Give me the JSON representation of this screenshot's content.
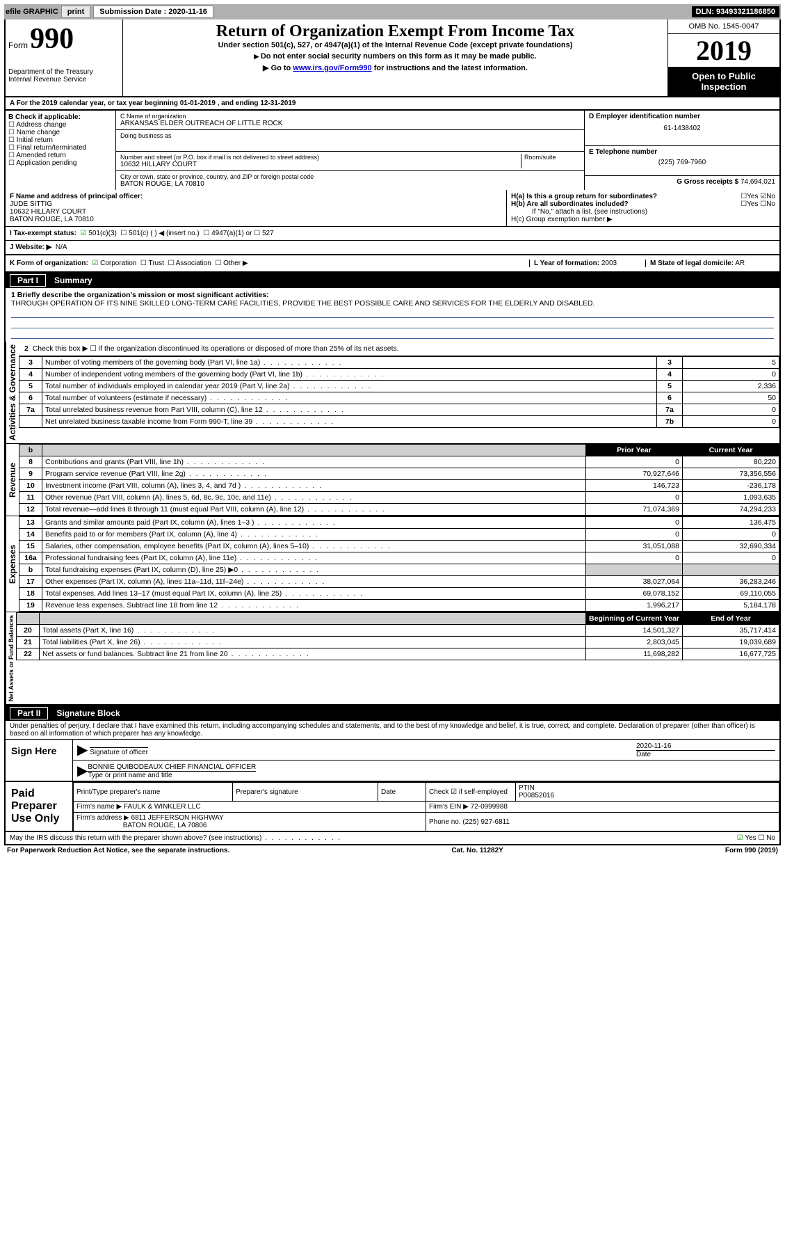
{
  "topbar": {
    "efile": "efile GRAPHIC",
    "print": "print",
    "sub_label": "Submission Date : 2020-11-16",
    "dln": "DLN: 93493321186850"
  },
  "header": {
    "form_prefix": "Form",
    "form_num": "990",
    "dept": "Department of the Treasury",
    "irs": "Internal Revenue Service",
    "title": "Return of Organization Exempt From Income Tax",
    "subtitle": "Under section 501(c), 527, or 4947(a)(1) of the Internal Revenue Code (except private foundations)",
    "note1": "Do not enter social security numbers on this form as it may be made public.",
    "note2_pre": "Go to ",
    "note2_link": "www.irs.gov/Form990",
    "note2_post": " for instructions and the latest information.",
    "omb": "OMB No. 1545-0047",
    "year": "2019",
    "open": "Open to Public Inspection"
  },
  "section_a": "A   For the 2019 calendar year, or tax year beginning 01-01-2019    , and ending 12-31-2019",
  "col_b": {
    "label": "B Check if applicable:",
    "items": [
      "Address change",
      "Name change",
      "Initial return",
      "Final return/terminated",
      "Amended return",
      "Application pending"
    ]
  },
  "col_c": {
    "name_label": "C Name of organization",
    "name": "ARKANSAS ELDER OUTREACH OF LITTLE ROCK",
    "dba": "Doing business as",
    "addr_label": "Number and street (or P.O. box if mail is not delivered to street address)",
    "room": "Room/suite",
    "addr": "10632 HILLARY COURT",
    "city_label": "City or town, state or province, country, and ZIP or foreign postal code",
    "city": "BATON ROUGE, LA  70810"
  },
  "col_d": {
    "label": "D Employer identification number",
    "val": "61-1438402"
  },
  "col_e": {
    "label": "E Telephone number",
    "val": "(225) 769-7960"
  },
  "col_g": {
    "label": "G Gross receipts $",
    "val": "74,694,021"
  },
  "col_f": {
    "label": "F  Name and address of principal officer:",
    "name": "JUDE SITTIG",
    "addr1": "10632 HILLARY COURT",
    "addr2": "BATON ROUGE, LA  70810"
  },
  "col_h": {
    "a": "H(a)  Is this a group return for subordinates?",
    "b": "H(b)  Are all subordinates included?",
    "b_note": "If \"No,\" attach a list. (see instructions)",
    "c": "H(c)  Group exemption number ▶"
  },
  "row_i": {
    "label": "I   Tax-exempt status:",
    "opts": [
      "501(c)(3)",
      "501(c) (  ) ◀ (insert no.)",
      "4947(a)(1) or",
      "527"
    ]
  },
  "row_j": {
    "label": "J   Website: ▶",
    "val": "N/A"
  },
  "row_k": {
    "label": "K Form of organization:",
    "opts": [
      "Corporation",
      "Trust",
      "Association",
      "Other ▶"
    ]
  },
  "row_l": {
    "label": "L Year of formation:",
    "val": "2003"
  },
  "row_m": {
    "label": "M State of legal domicile:",
    "val": "AR"
  },
  "part1": {
    "header": "Summary",
    "line1_label": "1   Briefly describe the organization's mission or most significant activities:",
    "line1_text": "THROUGH OPERATION OF ITS NINE SKILLED LONG-TERM CARE FACILITIES, PROVIDE THE BEST POSSIBLE CARE AND SERVICES FOR THE ELDERLY AND DISABLED.",
    "line2": "Check this box ▶ ☐  if the organization discontinued its operations or disposed of more than 25% of its net assets.",
    "lines_a": [
      {
        "n": "3",
        "d": "Number of voting members of the governing body (Part VI, line 1a)",
        "b": "3",
        "v": "5"
      },
      {
        "n": "4",
        "d": "Number of independent voting members of the governing body (Part VI, line 1b)",
        "b": "4",
        "v": "0"
      },
      {
        "n": "5",
        "d": "Total number of individuals employed in calendar year 2019 (Part V, line 2a)",
        "b": "5",
        "v": "2,336"
      },
      {
        "n": "6",
        "d": "Total number of volunteers (estimate if necessary)",
        "b": "6",
        "v": "50"
      },
      {
        "n": "7a",
        "d": "Total unrelated business revenue from Part VIII, column (C), line 12",
        "b": "7a",
        "v": "0"
      },
      {
        "n": "",
        "d": "Net unrelated business taxable income from Form 990-T, line 39",
        "b": "7b",
        "v": "0"
      }
    ],
    "col_headers": {
      "prior": "Prior Year",
      "current": "Current Year"
    },
    "lines_rev": [
      {
        "n": "8",
        "d": "Contributions and grants (Part VIII, line 1h)",
        "p": "0",
        "c": "80,220"
      },
      {
        "n": "9",
        "d": "Program service revenue (Part VIII, line 2g)",
        "p": "70,927,646",
        "c": "73,356,556"
      },
      {
        "n": "10",
        "d": "Investment income (Part VIII, column (A), lines 3, 4, and 7d )",
        "p": "146,723",
        "c": "-236,178"
      },
      {
        "n": "11",
        "d": "Other revenue (Part VIII, column (A), lines 5, 6d, 8c, 9c, 10c, and 11e)",
        "p": "0",
        "c": "1,093,635"
      },
      {
        "n": "12",
        "d": "Total revenue—add lines 8 through 11 (must equal Part VIII, column (A), line 12)",
        "p": "71,074,369",
        "c": "74,294,233"
      }
    ],
    "lines_exp": [
      {
        "n": "13",
        "d": "Grants and similar amounts paid (Part IX, column (A), lines 1–3 )",
        "p": "0",
        "c": "136,475"
      },
      {
        "n": "14",
        "d": "Benefits paid to or for members (Part IX, column (A), line 4)",
        "p": "0",
        "c": "0"
      },
      {
        "n": "15",
        "d": "Salaries, other compensation, employee benefits (Part IX, column (A), lines 5–10)",
        "p": "31,051,088",
        "c": "32,690,334"
      },
      {
        "n": "16a",
        "d": "Professional fundraising fees (Part IX, column (A), line 11e)",
        "p": "0",
        "c": "0"
      },
      {
        "n": "b",
        "d": "Total fundraising expenses (Part IX, column (D), line 25) ▶0",
        "p": "",
        "c": "",
        "shade": true
      },
      {
        "n": "17",
        "d": "Other expenses (Part IX, column (A), lines 11a–11d, 11f–24e)",
        "p": "38,027,064",
        "c": "36,283,246"
      },
      {
        "n": "18",
        "d": "Total expenses. Add lines 13–17 (must equal Part IX, column (A), line 25)",
        "p": "69,078,152",
        "c": "69,110,055"
      },
      {
        "n": "19",
        "d": "Revenue less expenses. Subtract line 18 from line 12",
        "p": "1,996,217",
        "c": "5,184,178"
      }
    ],
    "col_headers2": {
      "beg": "Beginning of Current Year",
      "end": "End of Year"
    },
    "lines_net": [
      {
        "n": "20",
        "d": "Total assets (Part X, line 16)",
        "p": "14,501,327",
        "c": "35,717,414"
      },
      {
        "n": "21",
        "d": "Total liabilities (Part X, line 26)",
        "p": "2,803,045",
        "c": "19,039,689"
      },
      {
        "n": "22",
        "d": "Net assets or fund balances. Subtract line 21 from line 20",
        "p": "11,698,282",
        "c": "16,677,725"
      }
    ],
    "vert_a": "Activities & Governance",
    "vert_r": "Revenue",
    "vert_e": "Expenses",
    "vert_n": "Net Assets or Fund Balances"
  },
  "part2": {
    "header": "Signature Block",
    "penalty": "Under penalties of perjury, I declare that I have examined this return, including accompanying schedules and statements, and to the best of my knowledge and belief, it is true, correct, and complete. Declaration of preparer (other than officer) is based on all information of which preparer has any knowledge.",
    "sign_here": "Sign Here",
    "sig_officer": "Signature of officer",
    "date": "Date",
    "date_val": "2020-11-16",
    "name": "BONNIE QUIBODEAUX  CHIEF FINANCIAL OFFICER",
    "name_label": "Type or print name and title",
    "paid": "Paid Preparer Use Only",
    "prep_name": "Print/Type preparer's name",
    "prep_sig": "Preparer's signature",
    "prep_date": "Date",
    "check_self": "Check ☑ if self-employed",
    "ptin_label": "PTIN",
    "ptin": "P00852016",
    "firm_name_l": "Firm's name    ▶",
    "firm_name": "FAULK & WINKLER LLC",
    "firm_ein_l": "Firm's EIN ▶",
    "firm_ein": "72-0999988",
    "firm_addr_l": "Firm's address ▶",
    "firm_addr": "6811 JEFFERSON HIGHWAY",
    "firm_city": "BATON ROUGE, LA  70806",
    "phone_l": "Phone no.",
    "phone": "(225) 927-6811",
    "discuss": "May the IRS discuss this return with the preparer shown above? (see instructions)"
  },
  "footer": {
    "left": "For Paperwork Reduction Act Notice, see the separate instructions.",
    "mid": "Cat. No. 11282Y",
    "right": "Form 990 (2019)"
  }
}
